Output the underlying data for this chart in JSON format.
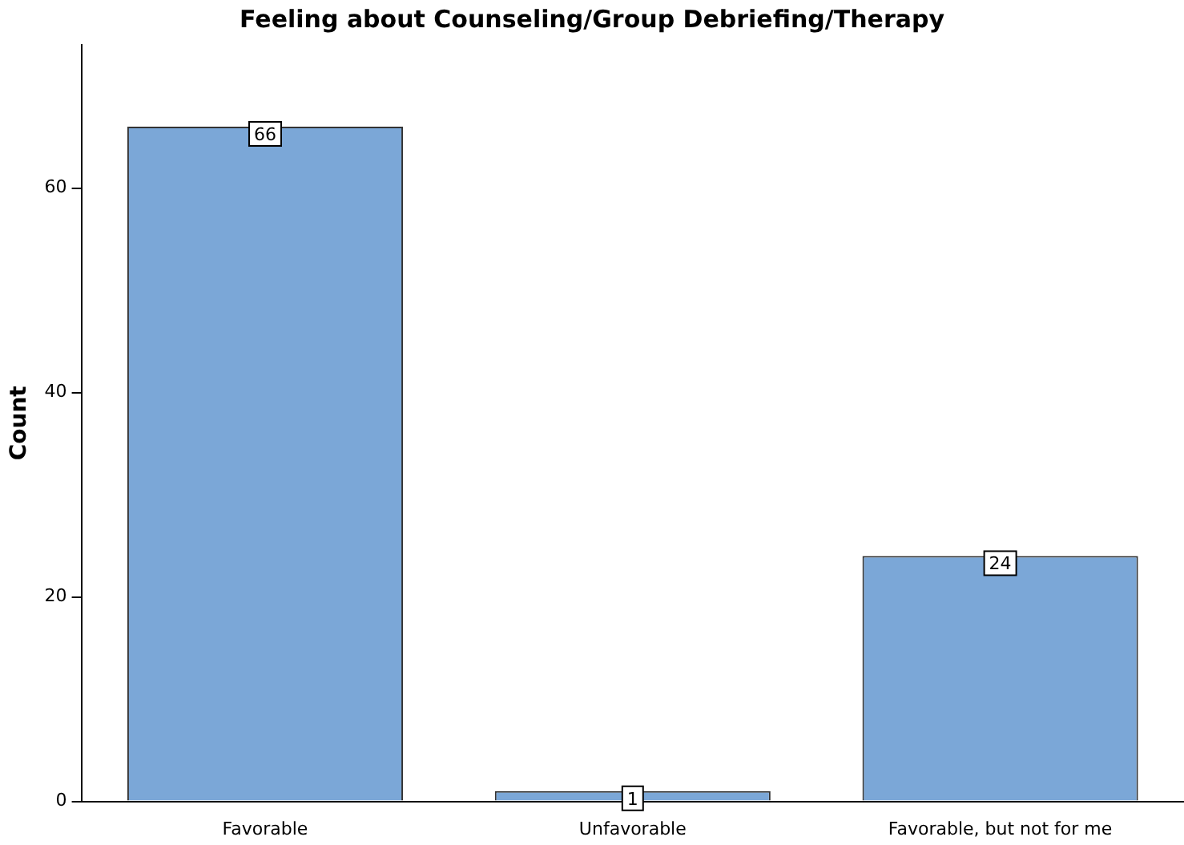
{
  "chart_data": {
    "type": "bar",
    "title": "Feeling about Counseling/Group Debriefing/Therapy",
    "ylabel": "Count",
    "categories": [
      "Favorable",
      "Unfavorable",
      "Favorable, but not for me"
    ],
    "values": [
      66,
      1,
      24
    ],
    "color": "#7ba7d7",
    "ylim": [
      0,
      74
    ],
    "yticks": [
      0,
      20,
      40,
      60
    ],
    "grid": false,
    "legend": false,
    "data_labels": true
  }
}
